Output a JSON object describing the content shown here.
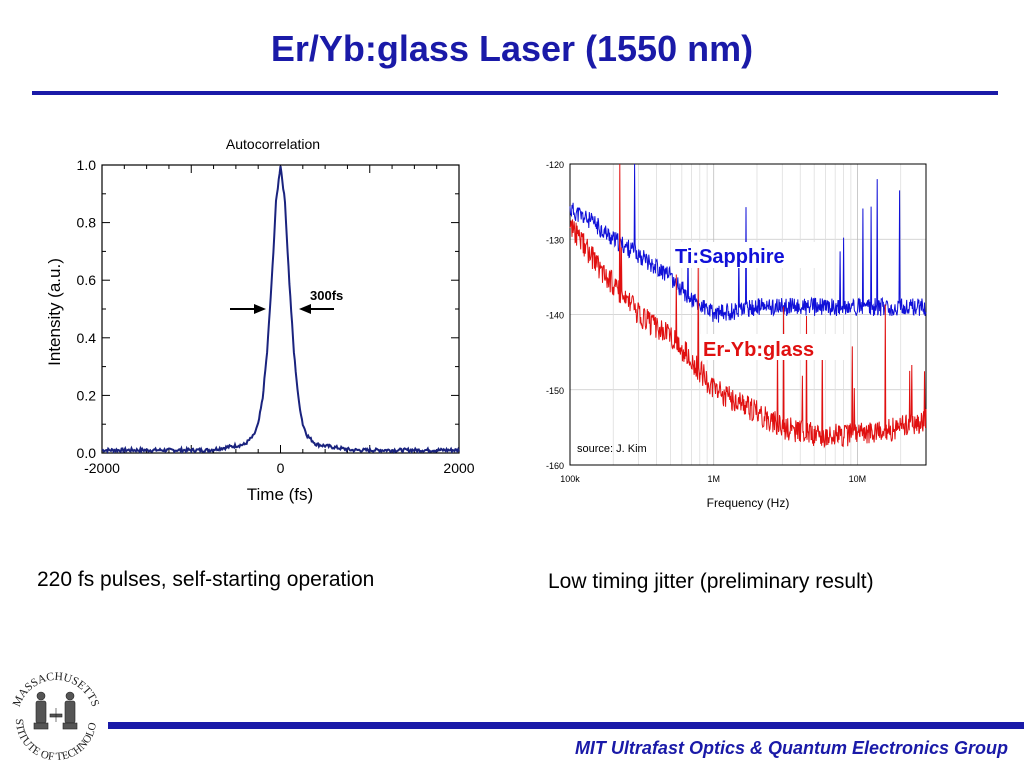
{
  "slide": {
    "title": "Er/Yb:glass Laser (1550 nm)",
    "left_caption": "220 fs pulses, self-starting operation",
    "right_caption": "Low timing jitter (preliminary result)",
    "footer": "MIT Ultrafast Optics & Quantum Electronics Group",
    "logo_text": "MASSACHUSETTS INSTITUTE OF TECHNOLOGY"
  },
  "colors": {
    "title": "#1a1aa8",
    "autocorr_trace": "#1a237e",
    "ti_sapphire": "#1010d8",
    "er_yb_glass": "#e01010"
  },
  "chart_data": [
    {
      "type": "line",
      "title": "Autocorrelation",
      "xlabel": "Time (fs)",
      "ylabel": "Intensity (a.u.)",
      "xlim": [
        -2000,
        2000
      ],
      "ylim": [
        0,
        1.0
      ],
      "x_ticks": [
        "-2000",
        "0",
        "2000"
      ],
      "y_ticks": [
        "0.0",
        "0.2",
        "0.4",
        "0.6",
        "0.8",
        "1.0"
      ],
      "annotation": "300fs",
      "series": [
        {
          "x": [
            -2000,
            -1600,
            -1200,
            -800,
            -600,
            -400,
            -300,
            -250,
            -200,
            -150,
            -100,
            -50,
            0,
            50,
            100,
            150,
            200,
            250,
            300,
            400,
            600,
            800,
            1200,
            1600,
            2000
          ],
          "values": [
            0.01,
            0.01,
            0.01,
            0.01,
            0.02,
            0.03,
            0.06,
            0.1,
            0.19,
            0.35,
            0.59,
            0.87,
            1.0,
            0.87,
            0.59,
            0.35,
            0.19,
            0.1,
            0.06,
            0.03,
            0.02,
            0.01,
            0.01,
            0.01,
            0.01
          ]
        }
      ]
    },
    {
      "type": "line",
      "xlabel": "Frequency (Hz)",
      "ylabel": "",
      "x_scale": "log",
      "xlim": [
        100000,
        30000000
      ],
      "ylim": [
        -160,
        -120
      ],
      "x_ticks": [
        "100k",
        "1M",
        "10M"
      ],
      "y_ticks": [
        "-120",
        "-130",
        "-140",
        "-150",
        "-160"
      ],
      "grid": true,
      "annotation": "source: J. Kim",
      "series": [
        {
          "name": "Ti:Sapphire",
          "x": [
            100000,
            150000,
            200000,
            300000,
            500000,
            700000,
            1000000,
            2000000,
            3000000,
            5000000,
            7000000,
            10000000,
            20000000,
            30000000
          ],
          "values": [
            -126,
            -128,
            -130,
            -132,
            -135,
            -138,
            -140,
            -139,
            -139,
            -139,
            -139,
            -139,
            -139,
            -139
          ]
        },
        {
          "name": "Er-Yb:glass",
          "x": [
            100000,
            150000,
            200000,
            300000,
            500000,
            700000,
            1000000,
            2000000,
            3000000,
            5000000,
            7000000,
            10000000,
            20000000,
            30000000
          ],
          "values": [
            -128,
            -133,
            -136,
            -140,
            -143,
            -146,
            -150,
            -153,
            -155,
            -156,
            -156,
            -156,
            -155,
            -154
          ]
        }
      ]
    }
  ]
}
